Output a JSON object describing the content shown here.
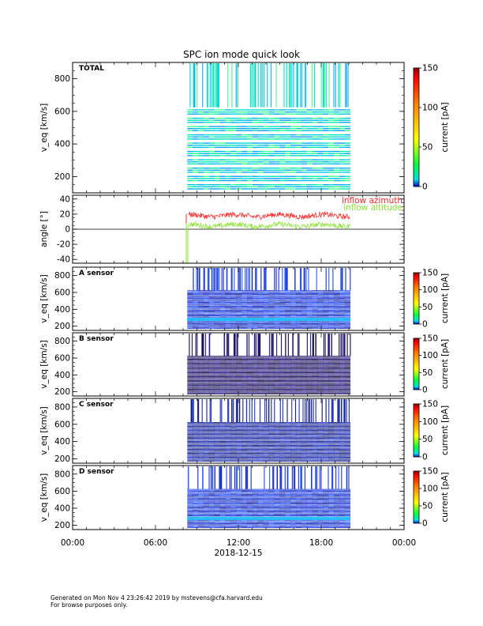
{
  "title": "SPC ion mode quick look",
  "footer": {
    "line1": "Generated on Mon Nov  4 23:26:42 2019 by mstevens@cfa.harvard.edu",
    "line2": "For browse purposes only."
  },
  "x_axis": {
    "ticks": [
      "00:00",
      "06:00",
      "12:00",
      "18:00",
      "00:00"
    ],
    "date_label": "2018-12-15"
  },
  "chart_data": [
    {
      "type": "heatmap",
      "panel_label": "TOTAL",
      "ylabel": "v_eq [km/s]",
      "yticks": [
        200,
        400,
        600,
        800
      ],
      "ylim": [
        100,
        900
      ],
      "colorbar": {
        "label": "current [pA]",
        "ticks": [
          0,
          50,
          100,
          150
        ],
        "range": [
          0,
          150
        ]
      },
      "data_coverage_hours": [
        8.3,
        20.1
      ],
      "style": "bright"
    },
    {
      "type": "line",
      "ylabel": "angle [°]",
      "yticks": [
        -40,
        -20,
        0,
        20,
        40
      ],
      "ylim": [
        -45,
        45
      ],
      "series": [
        {
          "name": "inflow azimuth",
          "color": "#ff2a2a",
          "mean": 18,
          "range_hours": [
            8.4,
            20.1
          ]
        },
        {
          "name": "inflow altitude",
          "color": "#8ae234",
          "mean": 5,
          "range_hours": [
            8.4,
            20.1
          ]
        }
      ]
    },
    {
      "type": "heatmap",
      "panel_label": "A sensor",
      "ylabel": "v_eq [km/s]",
      "yticks": [
        200,
        400,
        600,
        800
      ],
      "ylim": [
        150,
        900
      ],
      "colorbar": {
        "label": "current [pA]",
        "ticks": [
          0,
          50,
          100,
          150
        ],
        "range": [
          0,
          150
        ]
      },
      "data_coverage_hours": [
        8.3,
        20.1
      ],
      "style": "blue"
    },
    {
      "type": "heatmap",
      "panel_label": "B sensor",
      "ylabel": "v_eq [km/s]",
      "yticks": [
        200,
        400,
        600,
        800
      ],
      "ylim": [
        150,
        900
      ],
      "colorbar": {
        "label": "current [pA]",
        "ticks": [
          0,
          50,
          100,
          150
        ],
        "range": [
          0,
          150
        ]
      },
      "data_coverage_hours": [
        8.3,
        20.1
      ],
      "style": "dark"
    },
    {
      "type": "heatmap",
      "panel_label": "C sensor",
      "ylabel": "v_eq [km/s]",
      "yticks": [
        200,
        400,
        600,
        800
      ],
      "ylim": [
        150,
        900
      ],
      "colorbar": {
        "label": "current [pA]",
        "ticks": [
          0,
          50,
          100,
          150
        ],
        "range": [
          0,
          150
        ]
      },
      "data_coverage_hours": [
        8.3,
        20.1
      ],
      "style": "mid"
    },
    {
      "type": "heatmap",
      "panel_label": "D sensor",
      "ylabel": "v_eq [km/s]",
      "yticks": [
        200,
        400,
        600,
        800
      ],
      "ylim": [
        150,
        900
      ],
      "colorbar": {
        "label": "current [pA]",
        "ticks": [
          0,
          50,
          100,
          150
        ],
        "range": [
          0,
          150
        ]
      },
      "data_coverage_hours": [
        8.3,
        20.1
      ],
      "style": "blue"
    }
  ]
}
